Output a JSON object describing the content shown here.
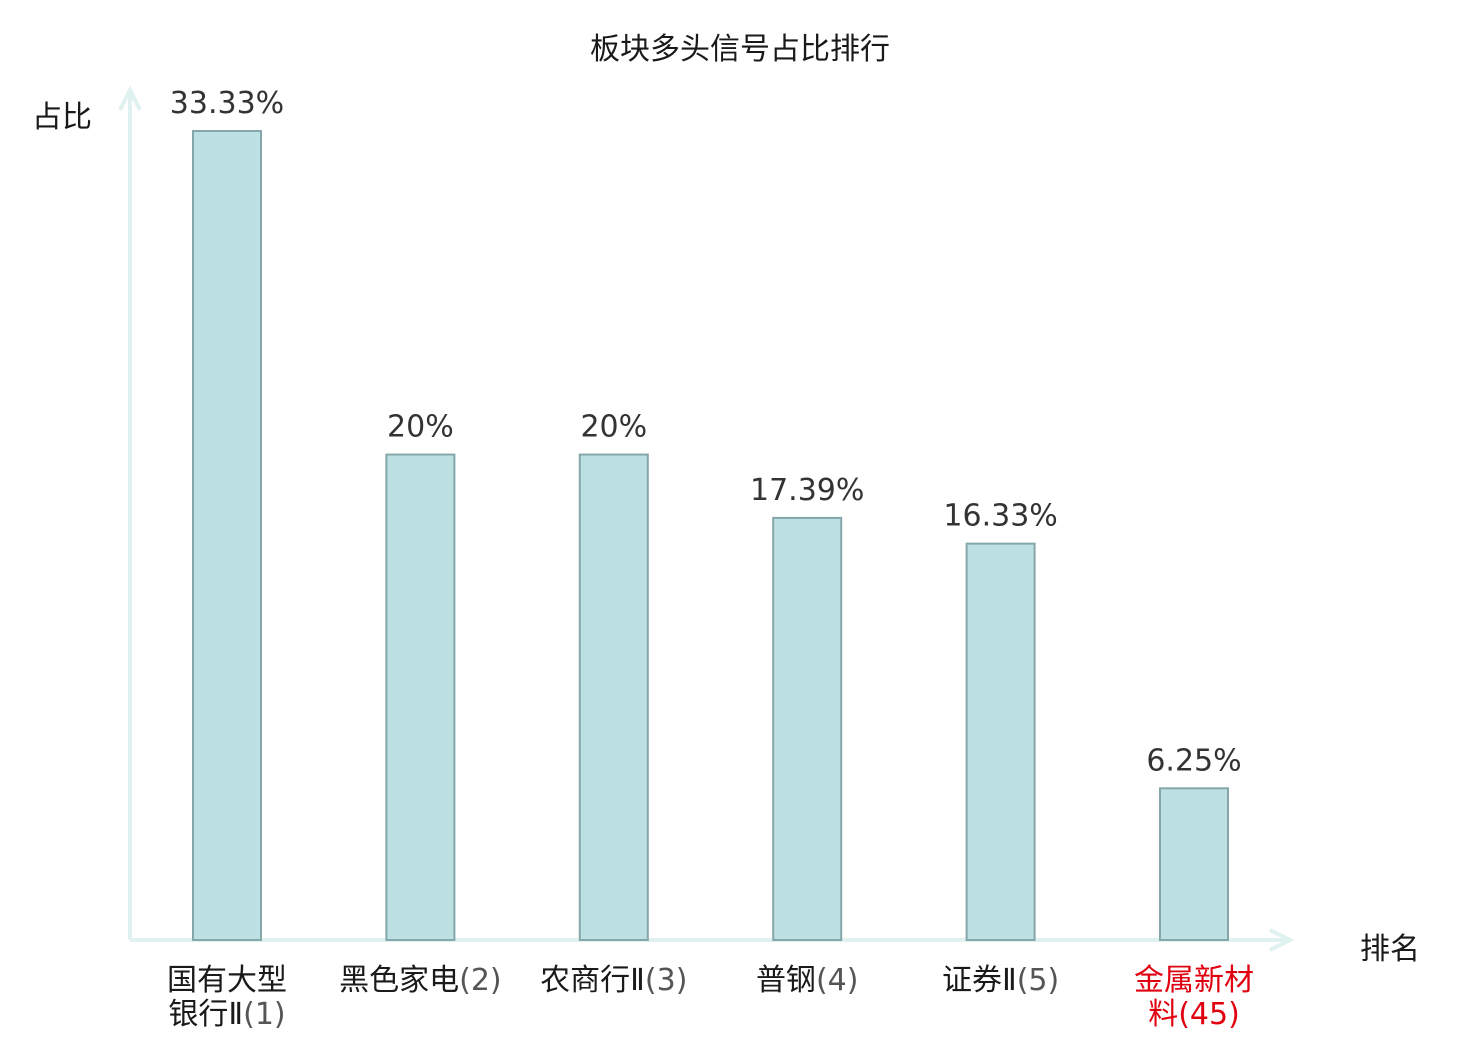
{
  "chart_data": {
    "type": "bar",
    "title": "板块多头信号占比排行",
    "ylabel": "占比",
    "xlabel": "排名",
    "categories": [
      {
        "name_line1": "国有大型",
        "name_line2": "银行Ⅱ",
        "rank": "(1)",
        "highlight": false
      },
      {
        "name_line1": "黑色家电",
        "name_line2": "",
        "rank": "(2)",
        "highlight": false
      },
      {
        "name_line1": "农商行Ⅱ",
        "name_line2": "",
        "rank": "(3)",
        "highlight": false
      },
      {
        "name_line1": "普钢",
        "name_line2": "",
        "rank": "(4)",
        "highlight": false
      },
      {
        "name_line1": "证券Ⅱ",
        "name_line2": "",
        "rank": "(5)",
        "highlight": false
      },
      {
        "name_line1": "金属新材",
        "name_line2": "料",
        "rank": "(45)",
        "highlight": true
      }
    ],
    "values": [
      33.33,
      20,
      20,
      17.39,
      16.33,
      6.25
    ],
    "value_labels": [
      "33.33%",
      "20%",
      "20%",
      "17.39%",
      "16.33%",
      "6.25%"
    ],
    "ylim": [
      0,
      33.33
    ],
    "grid": false,
    "colors": {
      "bar_fill": "#bde0e2",
      "bar_stroke": "#86a7aa",
      "axis": "#dff2ef",
      "highlight": "#e0000f",
      "text": "#1a1a1a"
    }
  }
}
